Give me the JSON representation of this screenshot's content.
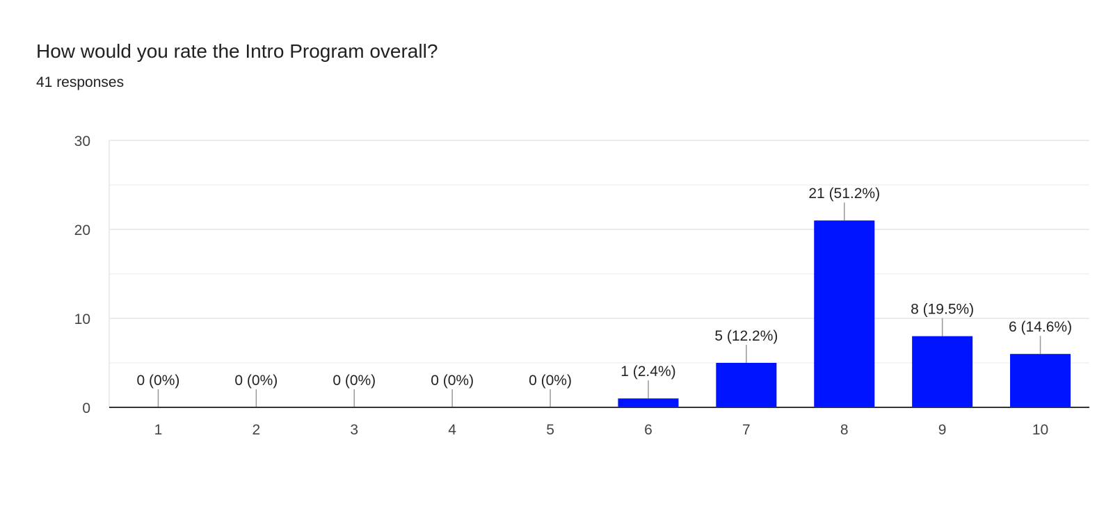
{
  "question": "How would you rate the Intro Program overall?",
  "responses": "41 responses",
  "chart_data": {
    "type": "bar",
    "categories": [
      "1",
      "2",
      "3",
      "4",
      "5",
      "6",
      "7",
      "8",
      "9",
      "10"
    ],
    "values": [
      0,
      0,
      0,
      0,
      0,
      1,
      5,
      21,
      8,
      6
    ],
    "data_labels": [
      "0 (0%)",
      "0 (0%)",
      "0 (0%)",
      "0 (0%)",
      "0 (0%)",
      "1 (2.4%)",
      "5 (12.2%)",
      "21 (51.2%)",
      "8 (19.5%)",
      "6 (14.6%)"
    ],
    "ylim": [
      0,
      30
    ],
    "yticks": [
      0,
      10,
      20,
      30
    ],
    "grid": true,
    "bar_color": "#0013ff"
  }
}
